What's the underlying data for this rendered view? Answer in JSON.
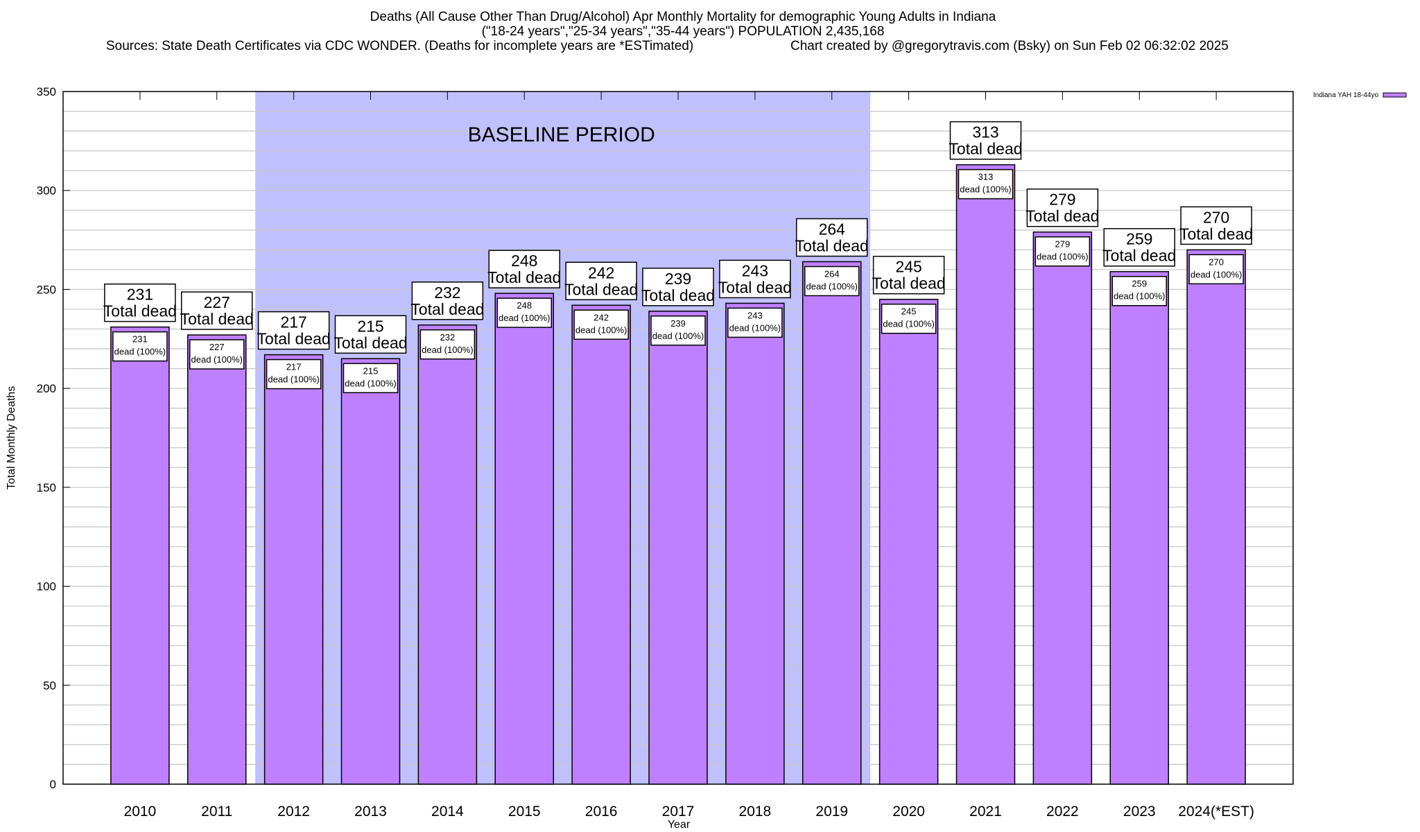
{
  "chart_data": {
    "type": "bar",
    "title_lines": [
      "Deaths (All Cause Other Than Drug/Alcohol) Apr Monthly Mortality for demographic Young Adults in Indiana",
      "(\"18-24 years\",\"25-34 years\",\"35-44 years\") POPULATION 2,435,168"
    ],
    "sources": "Sources: State Death Certificates via CDC WONDER. (Deaths for incomplete years are *ESTimated)",
    "credit": "Chart created by @gregorytravis.com (Bsky) on Sun Feb 02 06:32:02 2025",
    "xlabel": "Year",
    "ylabel": "Total Monthly Deaths",
    "ylim": [
      0,
      350
    ],
    "yticks": [
      0,
      50,
      100,
      150,
      200,
      250,
      300,
      350
    ],
    "minor_grid_step": 10,
    "grid": true,
    "legend": {
      "placement": "top-right",
      "label": "Indiana YAH 18-44yo"
    },
    "categories": [
      "2010",
      "2011",
      "2012",
      "2013",
      "2014",
      "2015",
      "2016",
      "2017",
      "2018",
      "2019",
      "2020",
      "2021",
      "2022",
      "2023",
      "2024(*EST)"
    ],
    "series": [
      {
        "name": "Indiana YAH 18-44yo",
        "values": [
          231,
          227,
          217,
          215,
          232,
          248,
          242,
          239,
          243,
          264,
          245,
          313,
          279,
          259,
          270
        ]
      }
    ],
    "top_label_suffix": "Total dead",
    "inner_label_suffix": "dead (100%)",
    "baseline": {
      "label": "BASELINE PERIOD",
      "from": "2012",
      "to": "2019"
    },
    "colors": {
      "bar": "#bf80ff",
      "baseline": "#c0c0ff",
      "grid": "#c8c8c8"
    }
  }
}
